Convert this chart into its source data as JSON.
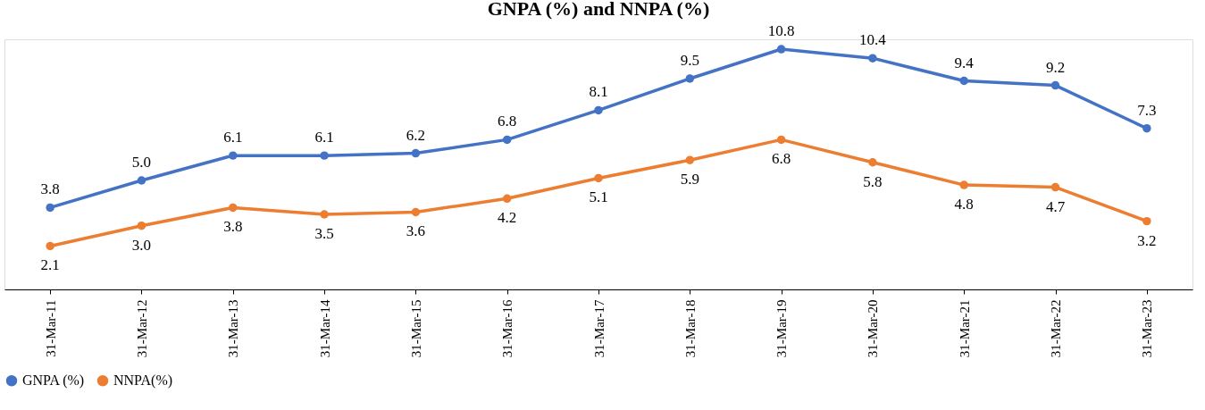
{
  "chart_data": {
    "type": "line",
    "title": "GNPA (%) and NNPA (%)",
    "categories": [
      "31-Mar-11",
      "31-Mar-12",
      "31-Mar-13",
      "31-Mar-14",
      "31-Mar-15",
      "31-Mar-16",
      "31-Mar-17",
      "31-Mar-18",
      "31-Mar-19",
      "31-Mar-20",
      "31-Mar-21",
      "31-Mar-22",
      "31-Mar-23"
    ],
    "series": [
      {
        "name": "GNPA (%)",
        "color": "#4472c4",
        "values": [
          3.8,
          5.0,
          6.1,
          6.1,
          6.2,
          6.8,
          8.1,
          9.5,
          10.8,
          10.4,
          9.4,
          9.2,
          7.3
        ],
        "value_labels": [
          "3.8",
          "5.0",
          "6.1",
          "6.1",
          "6.2",
          "6.8",
          "8.1",
          "9.5",
          "10.8",
          "10.4",
          "9.4",
          "9.2",
          "7.3"
        ]
      },
      {
        "name": "NNPA(%)",
        "color": "#ed7d31",
        "values": [
          2.1,
          3.0,
          3.8,
          3.5,
          3.6,
          4.2,
          5.1,
          5.9,
          6.8,
          5.8,
          4.8,
          4.7,
          3.2
        ],
        "value_labels": [
          "2.1",
          "3.0",
          "3.8",
          "3.5",
          "3.6",
          "4.2",
          "5.1",
          "5.9",
          "6.8",
          "5.8",
          "4.8",
          "4.7",
          "3.2"
        ]
      }
    ],
    "grid": false,
    "legend": "bottom",
    "marker": "circle",
    "line_style": "solid",
    "tick_labels": "x"
  }
}
